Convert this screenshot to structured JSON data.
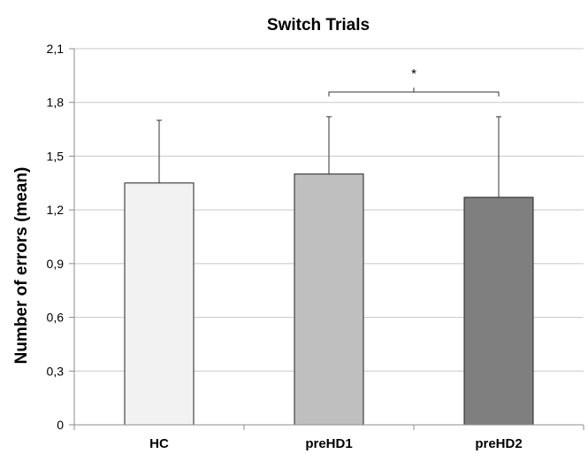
{
  "chart_data": {
    "type": "bar",
    "title": "Switch Trials",
    "ylabel": "Number of errors (mean)",
    "xlabel": "",
    "ylim": [
      0,
      2.1
    ],
    "yticks": [
      "0",
      "0,3",
      "0,6",
      "0,9",
      "1,2",
      "1,5",
      "1,8",
      "2,1"
    ],
    "categories": [
      "HC",
      "preHD1",
      "preHD2"
    ],
    "values": [
      1.35,
      1.4,
      1.27
    ],
    "error_upper": [
      1.7,
      1.72,
      1.72
    ],
    "bar_colors": [
      "#f2f2f2",
      "#bfbfbf",
      "#7f7f7f"
    ],
    "grid": true,
    "significance": {
      "label": "*",
      "between": [
        "preHD1",
        "preHD2"
      ]
    }
  }
}
